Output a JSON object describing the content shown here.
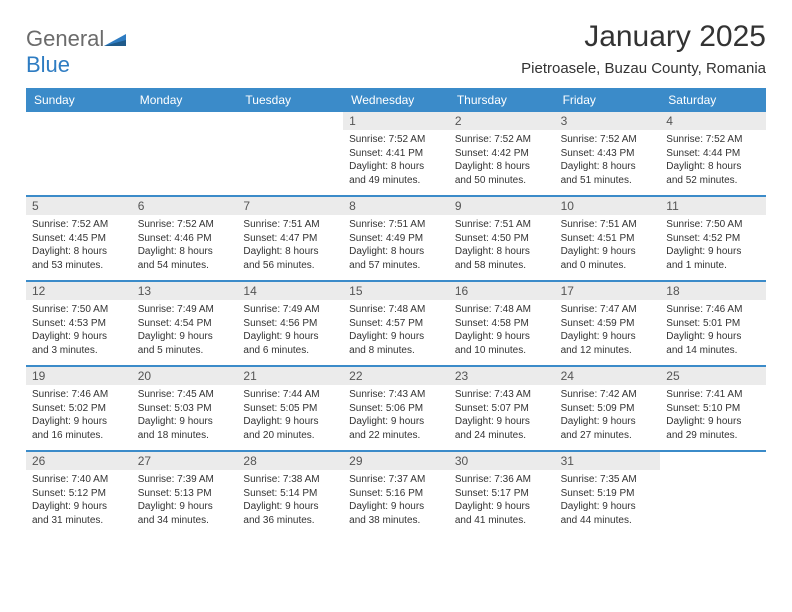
{
  "logo": {
    "text_a": "General",
    "text_b": "Blue"
  },
  "title": "January 2025",
  "location": "Pietroasele, Buzau County, Romania",
  "colors": {
    "header_bg": "#3b8bc9",
    "header_text": "#ffffff",
    "daynum_bg": "#ebebeb",
    "daynum_text": "#555555",
    "info_text": "#333333",
    "week_border": "#3b8bc9",
    "logo_gray": "#6b6b6b",
    "logo_blue": "#2e7cc2",
    "background": "#ffffff"
  },
  "day_labels": [
    "Sunday",
    "Monday",
    "Tuesday",
    "Wednesday",
    "Thursday",
    "Friday",
    "Saturday"
  ],
  "weeks": [
    [
      {
        "n": "",
        "sr": "",
        "ss": "",
        "d1": "",
        "d2": ""
      },
      {
        "n": "",
        "sr": "",
        "ss": "",
        "d1": "",
        "d2": ""
      },
      {
        "n": "",
        "sr": "",
        "ss": "",
        "d1": "",
        "d2": ""
      },
      {
        "n": "1",
        "sr": "Sunrise: 7:52 AM",
        "ss": "Sunset: 4:41 PM",
        "d1": "Daylight: 8 hours",
        "d2": "and 49 minutes."
      },
      {
        "n": "2",
        "sr": "Sunrise: 7:52 AM",
        "ss": "Sunset: 4:42 PM",
        "d1": "Daylight: 8 hours",
        "d2": "and 50 minutes."
      },
      {
        "n": "3",
        "sr": "Sunrise: 7:52 AM",
        "ss": "Sunset: 4:43 PM",
        "d1": "Daylight: 8 hours",
        "d2": "and 51 minutes."
      },
      {
        "n": "4",
        "sr": "Sunrise: 7:52 AM",
        "ss": "Sunset: 4:44 PM",
        "d1": "Daylight: 8 hours",
        "d2": "and 52 minutes."
      }
    ],
    [
      {
        "n": "5",
        "sr": "Sunrise: 7:52 AM",
        "ss": "Sunset: 4:45 PM",
        "d1": "Daylight: 8 hours",
        "d2": "and 53 minutes."
      },
      {
        "n": "6",
        "sr": "Sunrise: 7:52 AM",
        "ss": "Sunset: 4:46 PM",
        "d1": "Daylight: 8 hours",
        "d2": "and 54 minutes."
      },
      {
        "n": "7",
        "sr": "Sunrise: 7:51 AM",
        "ss": "Sunset: 4:47 PM",
        "d1": "Daylight: 8 hours",
        "d2": "and 56 minutes."
      },
      {
        "n": "8",
        "sr": "Sunrise: 7:51 AM",
        "ss": "Sunset: 4:49 PM",
        "d1": "Daylight: 8 hours",
        "d2": "and 57 minutes."
      },
      {
        "n": "9",
        "sr": "Sunrise: 7:51 AM",
        "ss": "Sunset: 4:50 PM",
        "d1": "Daylight: 8 hours",
        "d2": "and 58 minutes."
      },
      {
        "n": "10",
        "sr": "Sunrise: 7:51 AM",
        "ss": "Sunset: 4:51 PM",
        "d1": "Daylight: 9 hours",
        "d2": "and 0 minutes."
      },
      {
        "n": "11",
        "sr": "Sunrise: 7:50 AM",
        "ss": "Sunset: 4:52 PM",
        "d1": "Daylight: 9 hours",
        "d2": "and 1 minute."
      }
    ],
    [
      {
        "n": "12",
        "sr": "Sunrise: 7:50 AM",
        "ss": "Sunset: 4:53 PM",
        "d1": "Daylight: 9 hours",
        "d2": "and 3 minutes."
      },
      {
        "n": "13",
        "sr": "Sunrise: 7:49 AM",
        "ss": "Sunset: 4:54 PM",
        "d1": "Daylight: 9 hours",
        "d2": "and 5 minutes."
      },
      {
        "n": "14",
        "sr": "Sunrise: 7:49 AM",
        "ss": "Sunset: 4:56 PM",
        "d1": "Daylight: 9 hours",
        "d2": "and 6 minutes."
      },
      {
        "n": "15",
        "sr": "Sunrise: 7:48 AM",
        "ss": "Sunset: 4:57 PM",
        "d1": "Daylight: 9 hours",
        "d2": "and 8 minutes."
      },
      {
        "n": "16",
        "sr": "Sunrise: 7:48 AM",
        "ss": "Sunset: 4:58 PM",
        "d1": "Daylight: 9 hours",
        "d2": "and 10 minutes."
      },
      {
        "n": "17",
        "sr": "Sunrise: 7:47 AM",
        "ss": "Sunset: 4:59 PM",
        "d1": "Daylight: 9 hours",
        "d2": "and 12 minutes."
      },
      {
        "n": "18",
        "sr": "Sunrise: 7:46 AM",
        "ss": "Sunset: 5:01 PM",
        "d1": "Daylight: 9 hours",
        "d2": "and 14 minutes."
      }
    ],
    [
      {
        "n": "19",
        "sr": "Sunrise: 7:46 AM",
        "ss": "Sunset: 5:02 PM",
        "d1": "Daylight: 9 hours",
        "d2": "and 16 minutes."
      },
      {
        "n": "20",
        "sr": "Sunrise: 7:45 AM",
        "ss": "Sunset: 5:03 PM",
        "d1": "Daylight: 9 hours",
        "d2": "and 18 minutes."
      },
      {
        "n": "21",
        "sr": "Sunrise: 7:44 AM",
        "ss": "Sunset: 5:05 PM",
        "d1": "Daylight: 9 hours",
        "d2": "and 20 minutes."
      },
      {
        "n": "22",
        "sr": "Sunrise: 7:43 AM",
        "ss": "Sunset: 5:06 PM",
        "d1": "Daylight: 9 hours",
        "d2": "and 22 minutes."
      },
      {
        "n": "23",
        "sr": "Sunrise: 7:43 AM",
        "ss": "Sunset: 5:07 PM",
        "d1": "Daylight: 9 hours",
        "d2": "and 24 minutes."
      },
      {
        "n": "24",
        "sr": "Sunrise: 7:42 AM",
        "ss": "Sunset: 5:09 PM",
        "d1": "Daylight: 9 hours",
        "d2": "and 27 minutes."
      },
      {
        "n": "25",
        "sr": "Sunrise: 7:41 AM",
        "ss": "Sunset: 5:10 PM",
        "d1": "Daylight: 9 hours",
        "d2": "and 29 minutes."
      }
    ],
    [
      {
        "n": "26",
        "sr": "Sunrise: 7:40 AM",
        "ss": "Sunset: 5:12 PM",
        "d1": "Daylight: 9 hours",
        "d2": "and 31 minutes."
      },
      {
        "n": "27",
        "sr": "Sunrise: 7:39 AM",
        "ss": "Sunset: 5:13 PM",
        "d1": "Daylight: 9 hours",
        "d2": "and 34 minutes."
      },
      {
        "n": "28",
        "sr": "Sunrise: 7:38 AM",
        "ss": "Sunset: 5:14 PM",
        "d1": "Daylight: 9 hours",
        "d2": "and 36 minutes."
      },
      {
        "n": "29",
        "sr": "Sunrise: 7:37 AM",
        "ss": "Sunset: 5:16 PM",
        "d1": "Daylight: 9 hours",
        "d2": "and 38 minutes."
      },
      {
        "n": "30",
        "sr": "Sunrise: 7:36 AM",
        "ss": "Sunset: 5:17 PM",
        "d1": "Daylight: 9 hours",
        "d2": "and 41 minutes."
      },
      {
        "n": "31",
        "sr": "Sunrise: 7:35 AM",
        "ss": "Sunset: 5:19 PM",
        "d1": "Daylight: 9 hours",
        "d2": "and 44 minutes."
      },
      {
        "n": "",
        "sr": "",
        "ss": "",
        "d1": "",
        "d2": ""
      }
    ]
  ]
}
